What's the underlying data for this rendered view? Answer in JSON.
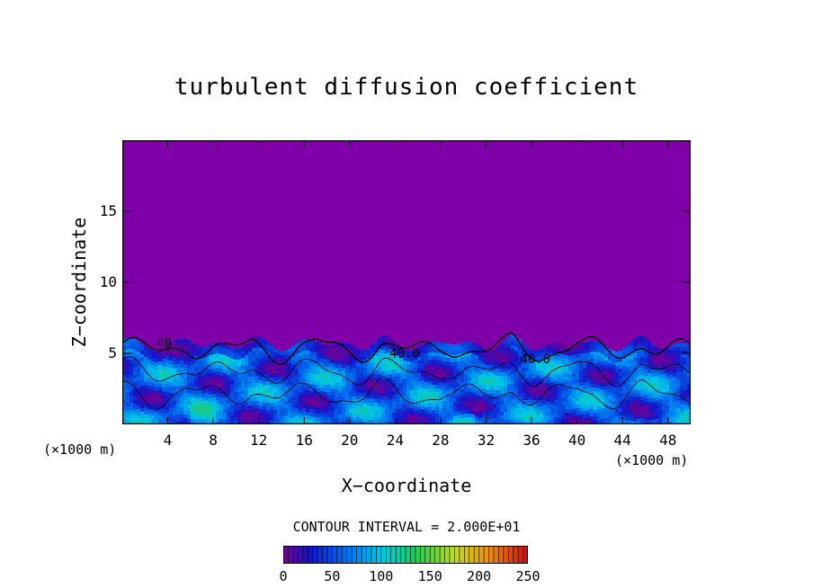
{
  "chart_data": {
    "type": "heatmap",
    "title": "turbulent diffusion coefficient",
    "xlabel": "X−coordinate",
    "ylabel": "Z−coordinate",
    "x_unit_left": "(×1000 m)",
    "x_unit_right": "(×1000 m)",
    "xlim": [
      0,
      50
    ],
    "ylim": [
      0,
      20
    ],
    "x_ticks": [
      "4",
      "8",
      "12",
      "16",
      "20",
      "24",
      "28",
      "32",
      "36",
      "40",
      "44",
      "48"
    ],
    "y_ticks": [
      "5",
      "10",
      "15"
    ],
    "contour_interval_text": "CONTOUR INTERVAL = 2.000E+01",
    "colorbar_min": 0,
    "colorbar_max": 250,
    "colorbar_ticks": [
      "0",
      "50",
      "100",
      "150",
      "200",
      "250"
    ],
    "contour_labels": [
      {
        "text": "40",
        "x": 3.0,
        "z": 5.4
      },
      {
        "text": "40.0",
        "x": 23.5,
        "z": 4.7
      },
      {
        "text": "40.0",
        "x": 35.0,
        "z": 4.3
      }
    ],
    "grid": false,
    "background_color": "#7f00a8",
    "turbulent_layer_top_km": 6
  }
}
